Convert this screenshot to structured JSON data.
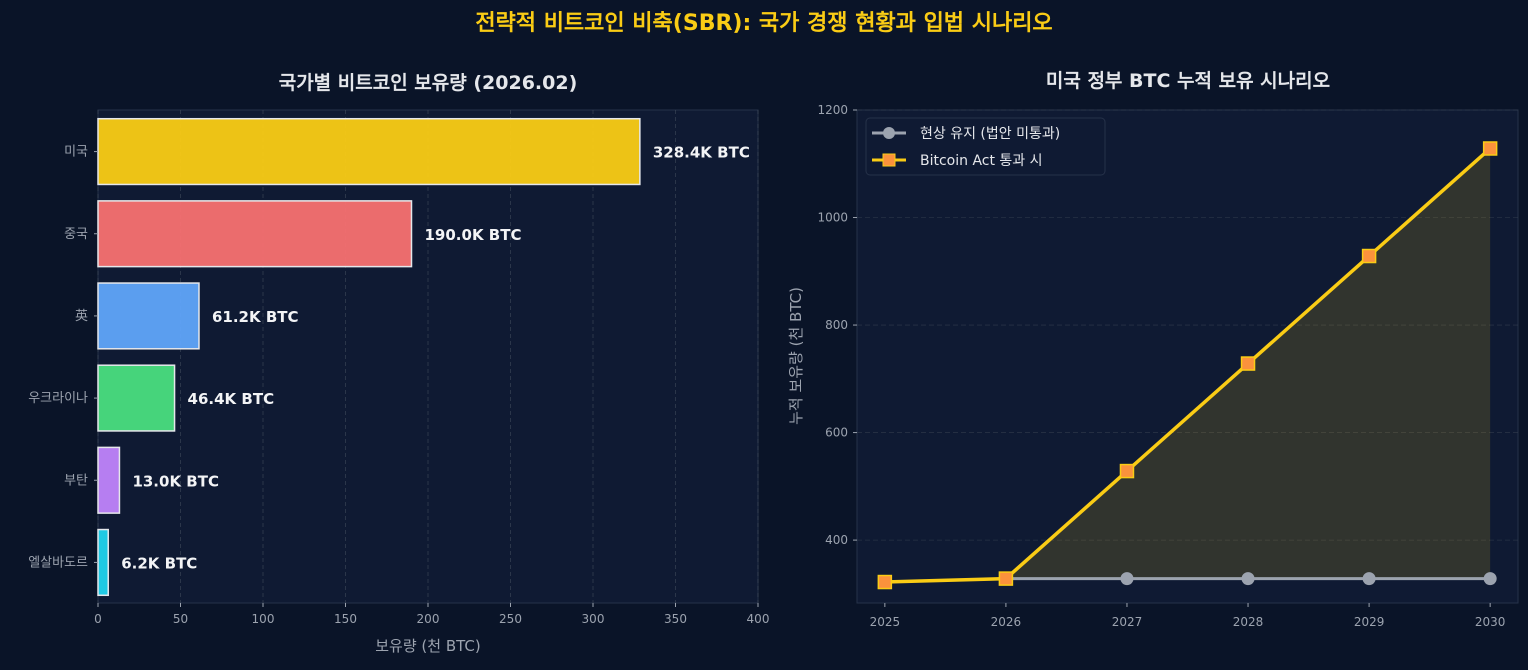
{
  "suptitle": "전략적 비트코인 비축(SBR): 국가 경쟁 현황과 입법 시나리오",
  "colors": {
    "background": "#0a1428",
    "panel": "#0f1a33",
    "title": "#facc15",
    "text": "#e5e7eb",
    "muted": "#9ca3af"
  },
  "chart_data": [
    {
      "type": "bar",
      "orientation": "horizontal",
      "title": "국가별 비트코인 보유량 (2026.02)",
      "xlabel": "보유량 (천 BTC)",
      "ylabel": "",
      "xlim": [
        0,
        400
      ],
      "xticks": [
        "0",
        "50",
        "100",
        "150",
        "200",
        "250",
        "300",
        "350",
        "400"
      ],
      "grid": true,
      "categories": [
        "미국",
        "중국",
        "英",
        "우크라이나",
        "부탄",
        "엘살바도르"
      ],
      "values": [
        328.4,
        190.0,
        61.2,
        46.4,
        13.0,
        6.2
      ],
      "data_labels": [
        "328.4K BTC",
        "190.0K BTC",
        "61.2K BTC",
        "46.4K BTC",
        "13.0K BTC",
        "6.2K BTC"
      ],
      "bar_colors": [
        "#facc15",
        "#f87171",
        "#60a5fa",
        "#4ade80",
        "#c084fc",
        "#22d3ee"
      ]
    },
    {
      "type": "line",
      "title": "미국 정부 BTC 누적 보유 시나리오",
      "xlabel": "",
      "ylabel": "누적 보유량 (천 BTC)",
      "ylim": [
        283,
        1200
      ],
      "yticks": [
        "400",
        "600",
        "800",
        "1000",
        "1200"
      ],
      "grid": true,
      "legend_position": "top-left",
      "x": [
        "2025",
        "2026",
        "2027",
        "2028",
        "2029",
        "2030"
      ],
      "series": [
        {
          "name": "현상 유지 (법안 미통과)",
          "x": [
            "2026",
            "2027",
            "2028",
            "2029",
            "2030"
          ],
          "values": [
            328.4,
            328.4,
            328.4,
            328.4,
            328.4
          ],
          "color": "#9ca3af",
          "marker": "circle"
        },
        {
          "name": "Bitcoin Act 통과 시",
          "x": [
            "2025",
            "2026",
            "2027",
            "2028",
            "2029",
            "2030"
          ],
          "values": [
            322,
            328.4,
            528.4,
            728.4,
            928.4,
            1128.4
          ],
          "color": "#facc15",
          "marker_color": "#fb923c",
          "marker": "square"
        }
      ],
      "fill_between": true
    }
  ]
}
